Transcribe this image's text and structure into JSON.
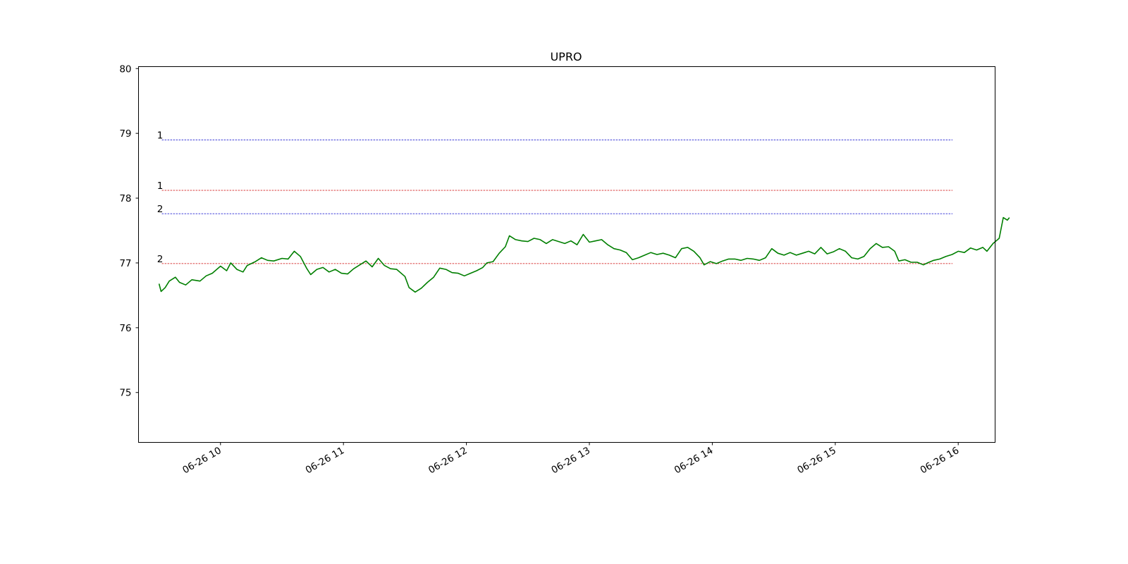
{
  "chart_data": {
    "type": "line",
    "title": "UPRO",
    "xlabel": "",
    "ylabel": "",
    "x_start": "2024-06-26 09:30",
    "x_end": "2024-06-26 16:00",
    "xlim": [
      "2024-06-26 09:20",
      "2024-06-26 16:18"
    ],
    "ylim": [
      74.23,
      80.03
    ],
    "xticks": [
      {
        "time": "2024-06-26 10:00",
        "label": "06-26 10"
      },
      {
        "time": "2024-06-26 11:00",
        "label": "06-26 11"
      },
      {
        "time": "2024-06-26 12:00",
        "label": "06-26 12"
      },
      {
        "time": "2024-06-26 13:00",
        "label": "06-26 13"
      },
      {
        "time": "2024-06-26 14:00",
        "label": "06-26 14"
      },
      {
        "time": "2024-06-26 15:00",
        "label": "06-26 15"
      },
      {
        "time": "2024-06-26 16:00",
        "label": "06-26 16"
      }
    ],
    "yticks": [
      75,
      76,
      77,
      78,
      79,
      80
    ],
    "grid": false,
    "series": [
      {
        "color": "#007f00",
        "points": [
          [
            "09:30",
            76.68
          ],
          [
            "09:31",
            76.56
          ],
          [
            "09:33",
            76.62
          ],
          [
            "09:35",
            76.72
          ],
          [
            "09:38",
            76.78
          ],
          [
            "09:40",
            76.7
          ],
          [
            "09:43",
            76.66
          ],
          [
            "09:46",
            76.74
          ],
          [
            "09:50",
            76.72
          ],
          [
            "09:53",
            76.8
          ],
          [
            "09:56",
            76.84
          ],
          [
            "10:00",
            76.95
          ],
          [
            "10:03",
            76.88
          ],
          [
            "10:05",
            77.0
          ],
          [
            "10:08",
            76.9
          ],
          [
            "10:11",
            76.86
          ],
          [
            "10:13",
            76.96
          ],
          [
            "10:17",
            77.02
          ],
          [
            "10:20",
            77.08
          ],
          [
            "10:23",
            77.04
          ],
          [
            "10:26",
            77.03
          ],
          [
            "10:30",
            77.07
          ],
          [
            "10:33",
            77.06
          ],
          [
            "10:36",
            77.18
          ],
          [
            "10:39",
            77.1
          ],
          [
            "10:42",
            76.92
          ],
          [
            "10:44",
            76.82
          ],
          [
            "10:47",
            76.9
          ],
          [
            "10:50",
            76.93
          ],
          [
            "10:53",
            76.86
          ],
          [
            "10:56",
            76.9
          ],
          [
            "10:59",
            76.84
          ],
          [
            "11:02",
            76.83
          ],
          [
            "11:05",
            76.91
          ],
          [
            "11:08",
            76.97
          ],
          [
            "11:11",
            77.03
          ],
          [
            "11:14",
            76.94
          ],
          [
            "11:17",
            77.07
          ],
          [
            "11:20",
            76.96
          ],
          [
            "11:23",
            76.91
          ],
          [
            "11:26",
            76.9
          ],
          [
            "11:30",
            76.79
          ],
          [
            "11:32",
            76.62
          ],
          [
            "11:35",
            76.55
          ],
          [
            "11:38",
            76.61
          ],
          [
            "11:41",
            76.7
          ],
          [
            "11:44",
            76.78
          ],
          [
            "11:47",
            76.92
          ],
          [
            "11:50",
            76.9
          ],
          [
            "11:53",
            76.85
          ],
          [
            "11:56",
            76.84
          ],
          [
            "11:59",
            76.8
          ],
          [
            "12:02",
            76.84
          ],
          [
            "12:05",
            76.88
          ],
          [
            "12:08",
            76.93
          ],
          [
            "12:10",
            77.0
          ],
          [
            "12:13",
            77.02
          ],
          [
            "12:16",
            77.15
          ],
          [
            "12:19",
            77.25
          ],
          [
            "12:21",
            77.42
          ],
          [
            "12:24",
            77.36
          ],
          [
            "12:27",
            77.34
          ],
          [
            "12:30",
            77.33
          ],
          [
            "12:33",
            77.38
          ],
          [
            "12:36",
            77.36
          ],
          [
            "12:39",
            77.3
          ],
          [
            "12:42",
            77.36
          ],
          [
            "12:45",
            77.33
          ],
          [
            "12:48",
            77.3
          ],
          [
            "12:51",
            77.34
          ],
          [
            "12:54",
            77.28
          ],
          [
            "12:57",
            77.44
          ],
          [
            "13:00",
            77.32
          ],
          [
            "13:03",
            77.34
          ],
          [
            "13:06",
            77.36
          ],
          [
            "13:09",
            77.28
          ],
          [
            "13:12",
            77.22
          ],
          [
            "13:15",
            77.2
          ],
          [
            "13:18",
            77.16
          ],
          [
            "13:21",
            77.05
          ],
          [
            "13:24",
            77.08
          ],
          [
            "13:27",
            77.12
          ],
          [
            "13:30",
            77.16
          ],
          [
            "13:33",
            77.13
          ],
          [
            "13:36",
            77.15
          ],
          [
            "13:39",
            77.12
          ],
          [
            "13:42",
            77.08
          ],
          [
            "13:45",
            77.22
          ],
          [
            "13:48",
            77.24
          ],
          [
            "13:51",
            77.18
          ],
          [
            "13:54",
            77.08
          ],
          [
            "13:56",
            76.97
          ],
          [
            "13:59",
            77.02
          ],
          [
            "14:02",
            76.99
          ],
          [
            "14:05",
            77.03
          ],
          [
            "14:08",
            77.06
          ],
          [
            "14:11",
            77.06
          ],
          [
            "14:14",
            77.04
          ],
          [
            "14:17",
            77.07
          ],
          [
            "14:20",
            77.06
          ],
          [
            "14:23",
            77.04
          ],
          [
            "14:26",
            77.08
          ],
          [
            "14:29",
            77.22
          ],
          [
            "14:32",
            77.15
          ],
          [
            "14:35",
            77.12
          ],
          [
            "14:38",
            77.16
          ],
          [
            "14:41",
            77.12
          ],
          [
            "14:44",
            77.15
          ],
          [
            "14:47",
            77.18
          ],
          [
            "14:50",
            77.14
          ],
          [
            "14:53",
            77.24
          ],
          [
            "14:56",
            77.14
          ],
          [
            "14:59",
            77.17
          ],
          [
            "15:02",
            77.22
          ],
          [
            "15:05",
            77.18
          ],
          [
            "15:08",
            77.08
          ],
          [
            "15:11",
            77.06
          ],
          [
            "15:14",
            77.1
          ],
          [
            "15:17",
            77.22
          ],
          [
            "15:20",
            77.3
          ],
          [
            "15:23",
            77.24
          ],
          [
            "15:26",
            77.25
          ],
          [
            "15:29",
            77.18
          ],
          [
            "15:31",
            77.03
          ],
          [
            "15:34",
            77.05
          ],
          [
            "15:37",
            77.01
          ],
          [
            "15:40",
            77.01
          ],
          [
            "15:43",
            76.97
          ],
          [
            "15:45",
            77.0
          ],
          [
            "15:48",
            77.04
          ],
          [
            "15:51",
            77.06
          ],
          [
            "15:54",
            77.1
          ],
          [
            "15:57",
            77.13
          ],
          [
            "16:00",
            77.18
          ],
          [
            "16:03",
            77.16
          ],
          [
            "16:06",
            77.23
          ],
          [
            "16:09",
            77.2
          ],
          [
            "16:12",
            77.24
          ],
          [
            "16:14",
            77.18
          ],
          [
            "16:17",
            77.3
          ],
          [
            "16:20",
            77.38
          ],
          [
            "16:22",
            77.7
          ],
          [
            "16:24",
            77.66
          ],
          [
            "16:25",
            77.7
          ]
        ]
      }
    ],
    "levels": [
      {
        "value": 78.9,
        "label": "1",
        "color": "#0000cc"
      },
      {
        "value": 78.12,
        "label": "1",
        "color": "#cc0000"
      },
      {
        "value": 77.76,
        "label": "2",
        "color": "#0000cc"
      },
      {
        "value": 76.99,
        "label": "2",
        "color": "#cc0000"
      }
    ]
  }
}
